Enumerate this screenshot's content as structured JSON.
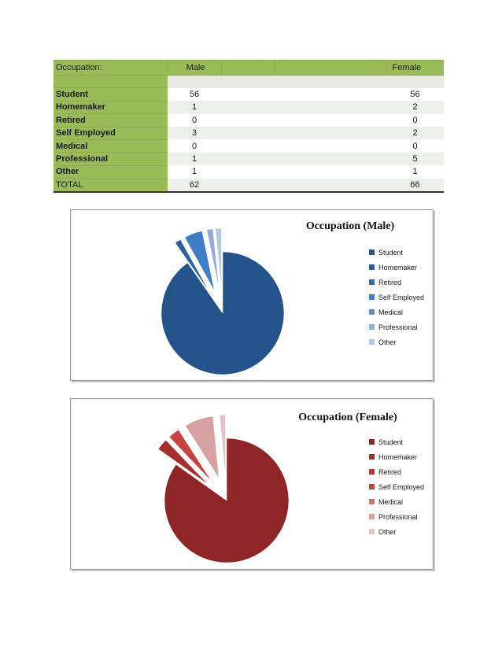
{
  "table": {
    "header": {
      "occupation": "Occupation:",
      "male": "Male",
      "female": "Female"
    },
    "rows": [
      {
        "label": "Student",
        "male": "56",
        "female": "56"
      },
      {
        "label": "Homemaker",
        "male": "1",
        "female": "2"
      },
      {
        "label": "Retired",
        "male": "0",
        "female": "0"
      },
      {
        "label": "Self Employed",
        "male": "3",
        "female": "2"
      },
      {
        "label": "Medical",
        "male": "0",
        "female": "0"
      },
      {
        "label": "Professional",
        "male": "1",
        "female": "5"
      },
      {
        "label": "Other",
        "male": "1",
        "female": "1"
      }
    ],
    "total": {
      "label": "TOTAL",
      "male": "62",
      "female": "66"
    }
  },
  "chart_data": [
    {
      "type": "pie",
      "title": "Occupation (Male)",
      "categories": [
        "Student",
        "Homemaker",
        "Retired",
        "Self Employed",
        "Medical",
        "Professional",
        "Other"
      ],
      "values": [
        56,
        1,
        0,
        3,
        0,
        1,
        1
      ],
      "colors": [
        "#24528a",
        "#2c5f9e",
        "#3569ae",
        "#3f7dc6",
        "#6a8fc0",
        "#93acd4",
        "#b8c8e2"
      ],
      "exploded": true,
      "legend": "right"
    },
    {
      "type": "pie",
      "title": "Occupation (Female)",
      "categories": [
        "Student",
        "Homemaker",
        "Retired",
        "Self Employed",
        "Medical",
        "Professional",
        "Other"
      ],
      "values": [
        56,
        2,
        0,
        2,
        0,
        5,
        1
      ],
      "colors": [
        "#8e2627",
        "#a62c2d",
        "#bb3536",
        "#c8403f",
        "#c77473",
        "#d6a2a1",
        "#e4c3c2"
      ],
      "exploded": true,
      "legend": "right"
    }
  ]
}
